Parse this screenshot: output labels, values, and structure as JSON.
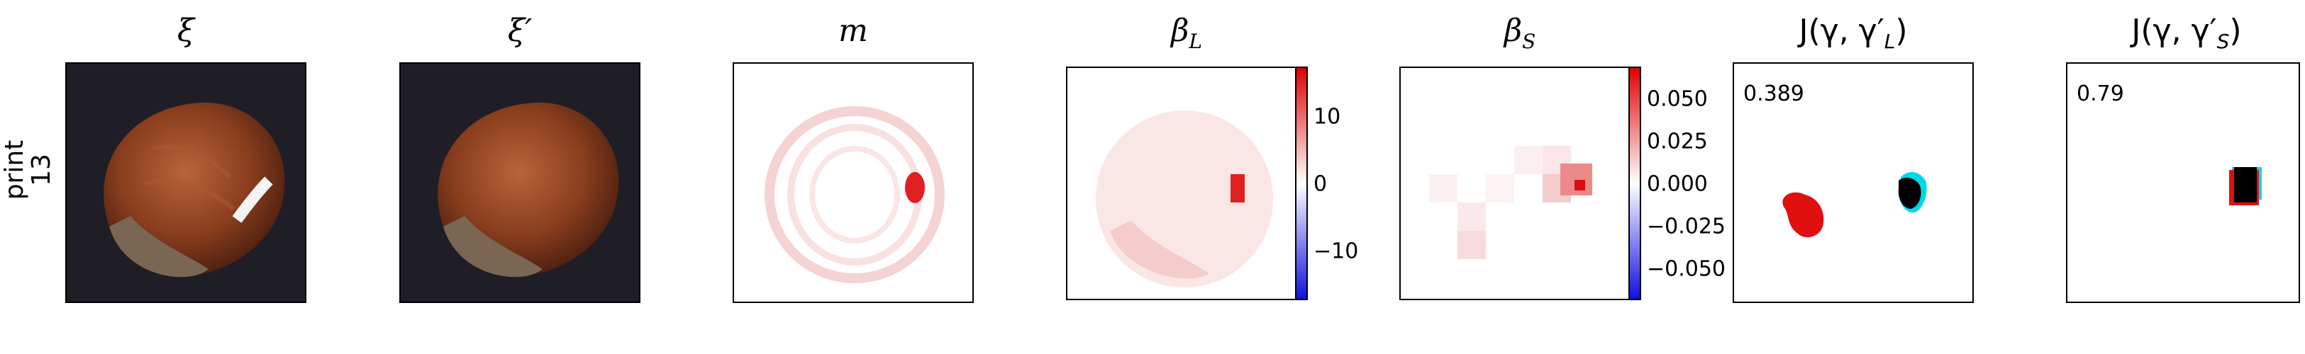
{
  "row_label": {
    "line1": "print",
    "line2": "13"
  },
  "panels": [
    {
      "title": "ξ"
    },
    {
      "title": "ξ′"
    },
    {
      "title": "m"
    },
    {
      "title": "β_L",
      "title_html": "βL"
    },
    {
      "title": "β_S"
    },
    {
      "title": "J(γ, γ′_L)"
    },
    {
      "title": "J(γ, γ′_S)"
    }
  ],
  "titles": {
    "xi": "ξ",
    "xi_prime": "ξ′",
    "m": "m",
    "beta_l_main": "β",
    "beta_l_sub": "L",
    "beta_s_main": "β",
    "beta_s_sub": "S",
    "j_l_main": "J(γ, γ′",
    "j_l_sub": "L",
    "j_l_close": ")",
    "j_s_main": "J(γ, γ′",
    "j_s_sub": "S",
    "j_s_close": ")"
  },
  "colorbar_l": {
    "ticks": [
      "10",
      "0",
      "−10"
    ]
  },
  "colorbar_s": {
    "ticks": [
      "0.050",
      "0.025",
      "0.000",
      "−0.025",
      "−0.050"
    ]
  },
  "scores": {
    "j_l": "0.389",
    "j_s": "0.79"
  },
  "colors": {
    "positive": "#e00000",
    "negative": "#1010e0",
    "overlay": "#00d8e8",
    "mask": "#000000"
  }
}
